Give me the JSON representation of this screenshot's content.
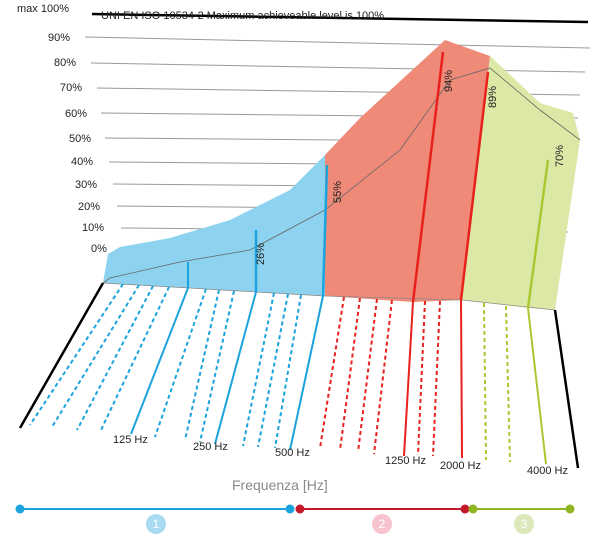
{
  "chart_data": {
    "type": "area",
    "title": "UNI EN ISO 10534-2 Maximum achieveable level is 100%",
    "xlabel": "Frequenza [Hz]",
    "ylabel": "",
    "ylim": [
      0,
      100
    ],
    "max_label": "max 100%",
    "y_ticks": [
      "90%",
      "80%",
      "70%",
      "60%",
      "50%",
      "40%",
      "30%",
      "20%",
      "10%",
      "0%"
    ],
    "x_tick_labels": [
      "125 Hz",
      "250 Hz",
      "500 Hz",
      "1250 Hz",
      "2000 Hz",
      "4000 Hz"
    ],
    "annotations": [
      "26%",
      "55%",
      "94%",
      "89%",
      "70%"
    ],
    "points": [
      {
        "x": "125 Hz",
        "y": 12
      },
      {
        "x": "250 Hz",
        "y": 26
      },
      {
        "x": "500 Hz",
        "y": 55
      },
      {
        "x": "1250 Hz",
        "y": 94
      },
      {
        "x": "2000 Hz",
        "y": 89
      },
      {
        "x": "4000 Hz",
        "y": 70
      }
    ],
    "bands": [
      {
        "label": "1",
        "color": "#8dd3ef",
        "line_color": "#1ba3dd"
      },
      {
        "label": "2",
        "color": "#ef8a78",
        "line_color": "#e8211d"
      },
      {
        "label": "3",
        "color": "#dbe8a6",
        "line_color": "#a9c831"
      }
    ],
    "grid": true
  }
}
